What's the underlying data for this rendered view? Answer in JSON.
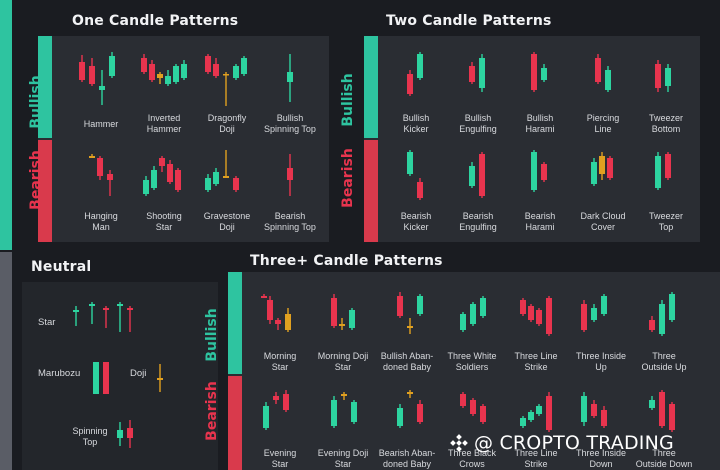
{
  "colors": {
    "bull": "#2dd4a0",
    "bear": "#e8344e",
    "neutral": "#e0a020",
    "panel": "#2a2d33",
    "background": "#1a1c21"
  },
  "sections": {
    "one": "One Candle Patterns",
    "two": "Two Candle Patterns",
    "neutral": "Neutral",
    "three": "Three+ Candle Patterns"
  },
  "sides": {
    "bullish": "Bullish",
    "bearish": "Bearish"
  },
  "one_candle": {
    "bullish": [
      "Hammer",
      "Inverted\nHammer",
      "Dragonfly\nDoji",
      "Bullish\nSpinning Top"
    ],
    "bearish": [
      "Hanging\nMan",
      "Shooting\nStar",
      "Gravestone\nDoji",
      "Bearish\nSpinning Top"
    ]
  },
  "two_candle": {
    "bullish": [
      "Bullish\nKicker",
      "Bullish\nEngulfing",
      "Bullish\nHarami",
      "Piercing\nLine",
      "Tweezer\nBottom"
    ],
    "bearish": [
      "Bearish\nKicker",
      "Bearish\nEngulfing",
      "Bearish\nHarami",
      "Dark Cloud\nCover",
      "Tweezer\nTop"
    ]
  },
  "neutral_items": [
    "Star",
    "Marubozu",
    "Doji",
    "Spinning\nTop"
  ],
  "three_candle": {
    "bullish": [
      "Morning\nStar",
      "Morning Doji\nStar",
      "Bullish Aban-\ndoned Baby",
      "Three White\nSoldiers",
      "Three Line\nStrike",
      "Three Inside\nUp",
      "Three\nOutside Up"
    ],
    "bearish": [
      "Evening\nStar",
      "Evening Doji\nStar",
      "Bearish Aban-\ndoned Baby",
      "Three Black\nCrows",
      "Three Line\nStrike",
      "Three Inside\nDown",
      "Three\nOutside Down"
    ]
  },
  "watermark": "@ CROPTO TRADING",
  "icons": {
    "watermark_logo": "diamond-grid-icon"
  }
}
